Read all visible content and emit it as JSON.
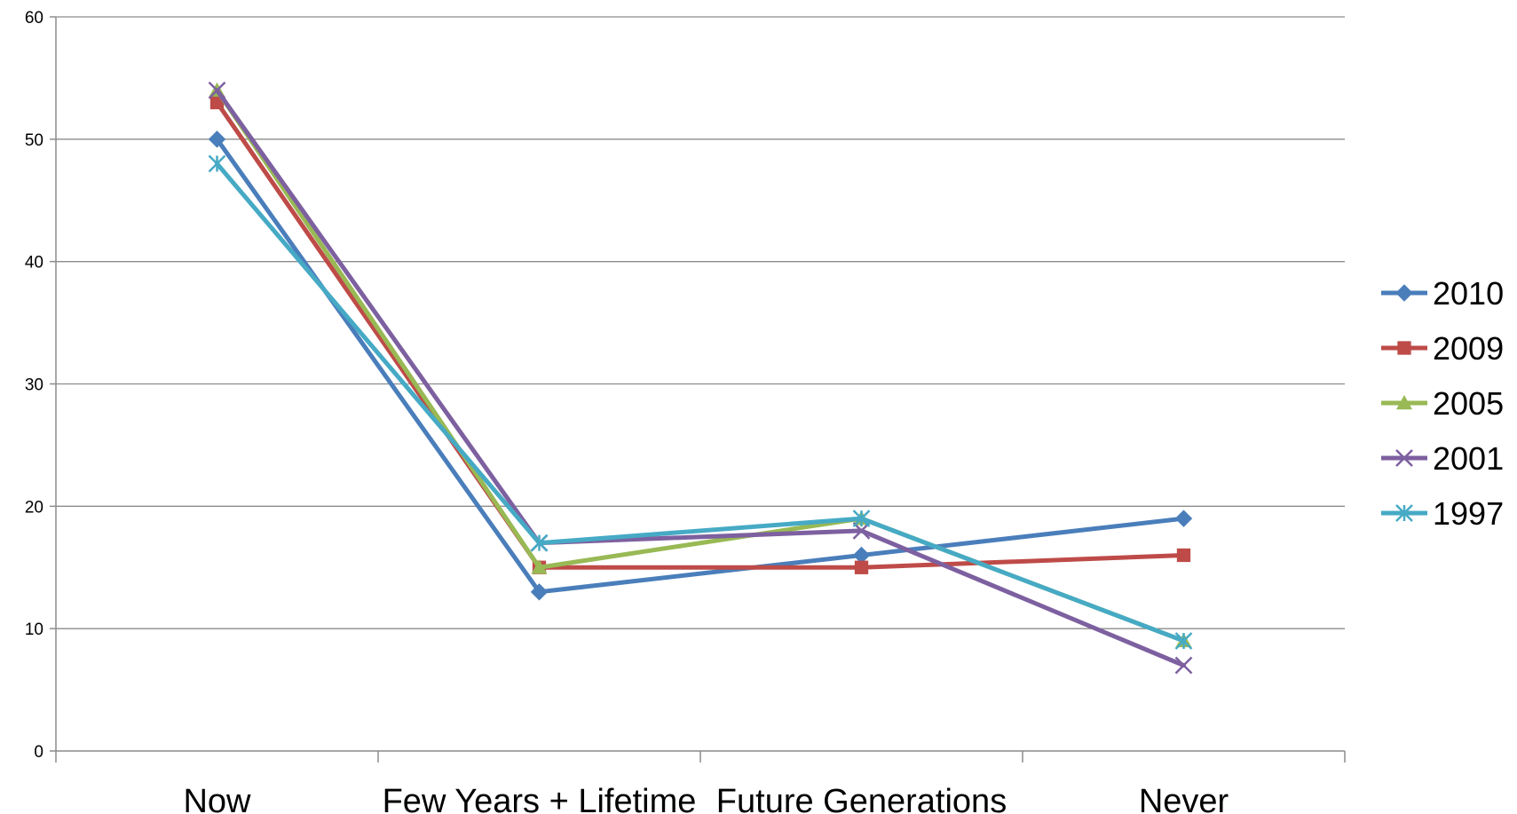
{
  "chart_data": {
    "type": "line",
    "title": "",
    "xlabel": "",
    "ylabel": "",
    "categories": [
      "Now",
      "Few Years + Lifetime",
      "Future Generations",
      "Never"
    ],
    "ylim": [
      0,
      60
    ],
    "yticks": [
      0,
      10,
      20,
      30,
      40,
      50,
      60
    ],
    "grid": true,
    "legend_position": "right",
    "series": [
      {
        "name": "2010",
        "values": [
          50,
          13,
          16,
          19
        ],
        "color": "#4a7ebb",
        "marker": "diamond"
      },
      {
        "name": "2009",
        "values": [
          53,
          15,
          15,
          16
        ],
        "color": "#be4b48",
        "marker": "square"
      },
      {
        "name": "2005",
        "values": [
          54,
          15,
          19,
          9
        ],
        "color": "#98b954",
        "marker": "triangle"
      },
      {
        "name": "2001",
        "values": [
          54,
          17,
          18,
          7
        ],
        "color": "#7d60a0",
        "marker": "x"
      },
      {
        "name": "1997",
        "values": [
          48,
          17,
          19,
          9
        ],
        "color": "#46aac5",
        "marker": "asterisk"
      }
    ]
  }
}
